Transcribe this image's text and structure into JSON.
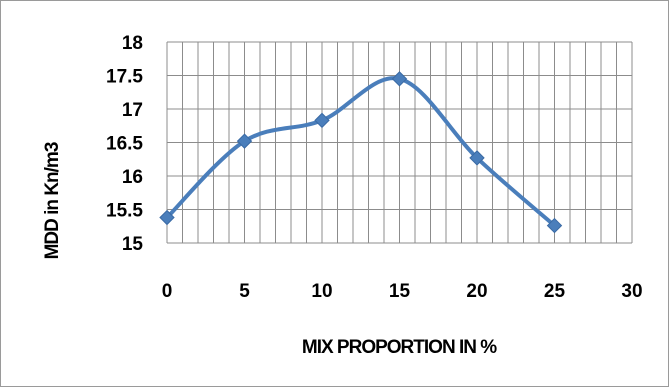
{
  "chart_data": {
    "type": "line",
    "title": "",
    "xlabel": "MIX PROPORTION IN %",
    "ylabel": "MDD in Kn/m3",
    "x": [
      0,
      5,
      10,
      15,
      20,
      25
    ],
    "series": [
      {
        "values": [
          15.38,
          16.52,
          16.83,
          17.45,
          16.27,
          15.26
        ]
      }
    ],
    "xlim": [
      0,
      30
    ],
    "ylim": [
      15,
      18
    ],
    "x_ticks": [
      "0",
      "5",
      "10",
      "15",
      "20",
      "25",
      "30"
    ],
    "y_ticks": [
      "15",
      "15.5",
      "16",
      "16.5",
      "17",
      "17.5",
      "18"
    ],
    "grid": true,
    "legend": "none",
    "smooth": true,
    "marker": "diamond",
    "colors": {
      "line": "#4a7ebb",
      "marker": "#4a7ebb",
      "grid": "#8c8c8c",
      "text": "#000000"
    }
  }
}
